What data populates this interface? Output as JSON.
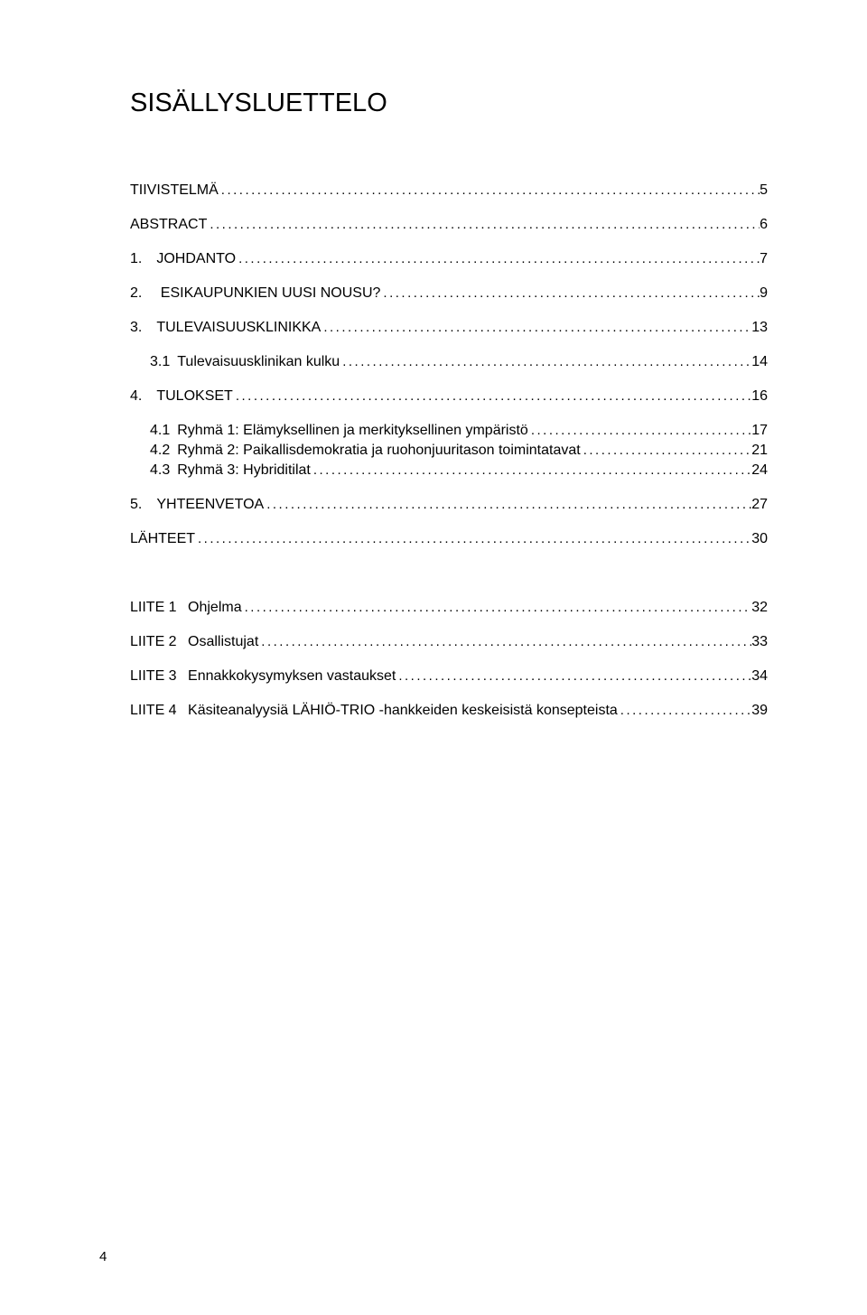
{
  "title": "SISÄLLYSLUETTELO",
  "toc_upper": [
    {
      "label": "TIIVISTELMÄ",
      "page": "5",
      "indent": 0
    },
    {
      "label": "ABSTRACT",
      "page": "6",
      "indent": 0
    },
    {
      "label": "1. JOHDANTO",
      "page": "7",
      "indent": 0
    },
    {
      "label": "2.  ESIKAUPUNKIEN UUSI NOUSU?",
      "page": "9",
      "indent": 0
    },
    {
      "label": "3. TULEVAISUUSKLINIKKA",
      "page": "13",
      "indent": 0
    },
    {
      "label": "3.1 Tulevaisuusklinikan kulku",
      "page": "14",
      "indent": 1
    },
    {
      "label": "4. TULOKSET",
      "page": "16",
      "indent": 0
    },
    {
      "label": "4.1 Ryhmä 1: Elämyksellinen ja merkityksellinen ympäristö",
      "page": "17",
      "indent": 1
    },
    {
      "label": "4.2 Ryhmä 2: Paikallisdemokratia ja ruohonjuuritason toimintatavat",
      "page": "21",
      "indent": 1
    },
    {
      "label": "4.3 Ryhmä 3: Hybriditilat",
      "page": "24",
      "indent": 1
    },
    {
      "label": "5. YHTEENVETOA",
      "page": "27",
      "indent": 0
    },
    {
      "label": "LÄHTEET",
      "page": "30",
      "indent": 0
    }
  ],
  "toc_lower": [
    {
      "label": "LIITE 1  Ohjelma",
      "page": "32",
      "indent": 0
    },
    {
      "label": "LIITE 2  Osallistujat",
      "page": "33",
      "indent": 0
    },
    {
      "label": "LIITE 3  Ennakkokysymyksen vastaukset",
      "page": "34",
      "indent": 0
    },
    {
      "label": "LIITE 4  Käsiteanalyysiä LÄHIÖ-TRIO -hankkeiden keskeisistä konsepteista",
      "page": "39",
      "indent": 0
    }
  ],
  "page_number": "4"
}
